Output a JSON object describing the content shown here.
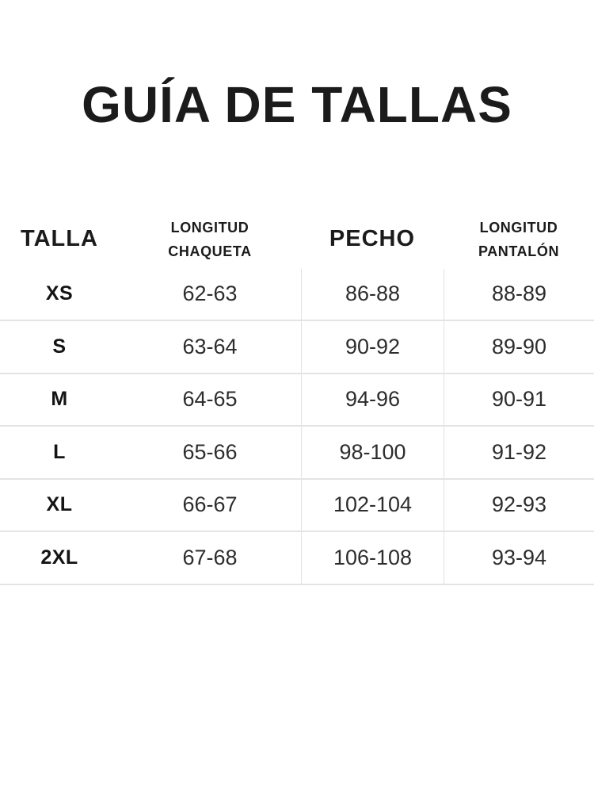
{
  "page": {
    "title": "GUÍA DE TALLAS",
    "background_color": "#ffffff",
    "text_color": "#1b1b1b",
    "divider_color": "#e4e4e4"
  },
  "table": {
    "headers": [
      {
        "label": "TALLA"
      },
      {
        "label": "LONGITUD CHAQUETA",
        "line1": "LONGITUD",
        "line2": "CHAQUETA"
      },
      {
        "label": "PECHO"
      },
      {
        "label": "LONGITUD PANTALÓN",
        "line1": "LONGITUD",
        "line2": "PANTALÓN"
      }
    ],
    "rows": [
      {
        "size": "XS",
        "jacket_length": "62-63",
        "chest": "86-88",
        "pants_length": "88-89"
      },
      {
        "size": "S",
        "jacket_length": "63-64",
        "chest": "90-92",
        "pants_length": "89-90"
      },
      {
        "size": "M",
        "jacket_length": "64-65",
        "chest": "94-96",
        "pants_length": "90-91"
      },
      {
        "size": "L",
        "jacket_length": "65-66",
        "chest": "98-100",
        "pants_length": "91-92"
      },
      {
        "size": "XL",
        "jacket_length": "66-67",
        "chest": "102-104",
        "pants_length": "92-93"
      },
      {
        "size": "2XL",
        "jacket_length": "67-68",
        "chest": "106-108",
        "pants_length": "93-94"
      }
    ]
  },
  "chart_data": {
    "type": "table",
    "title": "GUÍA DE TALLAS",
    "columns": [
      "TALLA",
      "LONGITUD CHAQUETA",
      "PECHO",
      "LONGITUD PANTALÓN"
    ],
    "rows": [
      [
        "XS",
        "62-63",
        "86-88",
        "88-89"
      ],
      [
        "S",
        "63-64",
        "90-92",
        "89-90"
      ],
      [
        "M",
        "64-65",
        "94-96",
        "90-91"
      ],
      [
        "L",
        "65-66",
        "98-100",
        "91-92"
      ],
      [
        "XL",
        "66-67",
        "102-104",
        "92-93"
      ],
      [
        "2XL",
        "67-68",
        "106-108",
        "93-94"
      ]
    ],
    "layout_hints": {
      "vertical_dividers_between": [
        [
          "LONGITUD CHAQUETA",
          "PECHO"
        ],
        [
          "PECHO",
          "LONGITUD PANTALÓN"
        ]
      ],
      "horizontal_dividers": "below each data row",
      "header_has_no_borders": true
    }
  }
}
